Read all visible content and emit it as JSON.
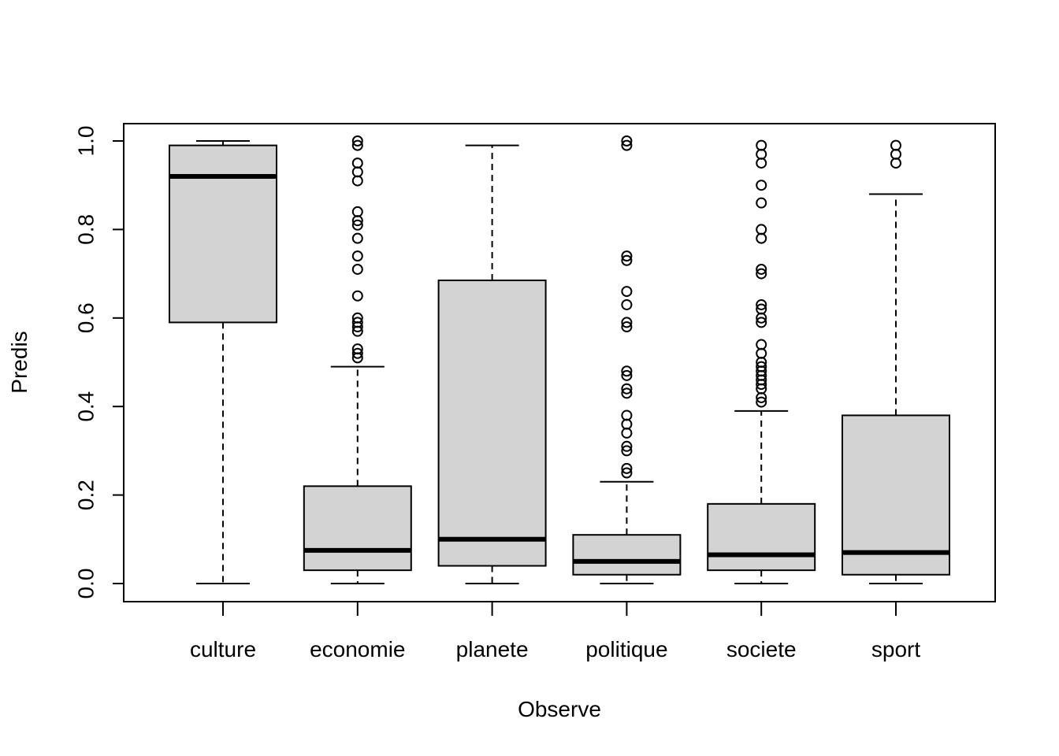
{
  "chart_data": {
    "type": "box",
    "title": "",
    "xlabel": "Observe",
    "ylabel": "Predis",
    "ylim": [
      0,
      1
    ],
    "yticks": [
      "0.0",
      "0.2",
      "0.4",
      "0.6",
      "0.8",
      "1.0"
    ],
    "box_fill": "#d3d3d3",
    "grid": false,
    "categories": [
      "culture",
      "economie",
      "planete",
      "politique",
      "societe",
      "sport"
    ],
    "boxes": [
      {
        "category": "culture",
        "whisker_low": 0.0,
        "q1": 0.59,
        "median": 0.92,
        "q3": 0.99,
        "whisker_high": 1.0,
        "outliers": []
      },
      {
        "category": "economie",
        "whisker_low": 0.0,
        "q1": 0.03,
        "median": 0.075,
        "q3": 0.22,
        "whisker_high": 0.49,
        "outliers": [
          0.51,
          0.52,
          0.53,
          0.57,
          0.58,
          0.59,
          0.6,
          0.65,
          0.71,
          0.74,
          0.78,
          0.81,
          0.82,
          0.84,
          0.91,
          0.93,
          0.95,
          0.99,
          1.0
        ]
      },
      {
        "category": "planete",
        "whisker_low": 0.0,
        "q1": 0.04,
        "median": 0.1,
        "q3": 0.685,
        "whisker_high": 0.99,
        "outliers": []
      },
      {
        "category": "politique",
        "whisker_low": 0.0,
        "q1": 0.02,
        "median": 0.05,
        "q3": 0.11,
        "whisker_high": 0.23,
        "outliers": [
          0.25,
          0.26,
          0.3,
          0.31,
          0.34,
          0.36,
          0.38,
          0.43,
          0.44,
          0.47,
          0.48,
          0.58,
          0.59,
          0.63,
          0.66,
          0.73,
          0.74,
          0.99,
          1.0
        ]
      },
      {
        "category": "societe",
        "whisker_low": 0.0,
        "q1": 0.03,
        "median": 0.065,
        "q3": 0.18,
        "whisker_high": 0.39,
        "outliers": [
          0.41,
          0.42,
          0.44,
          0.45,
          0.46,
          0.47,
          0.48,
          0.49,
          0.5,
          0.52,
          0.54,
          0.59,
          0.6,
          0.62,
          0.63,
          0.7,
          0.71,
          0.78,
          0.8,
          0.86,
          0.9,
          0.95,
          0.97,
          0.99
        ]
      },
      {
        "category": "sport",
        "whisker_low": 0.0,
        "q1": 0.02,
        "median": 0.07,
        "q3": 0.38,
        "whisker_high": 0.88,
        "outliers": [
          0.95,
          0.97,
          0.99
        ]
      }
    ]
  }
}
